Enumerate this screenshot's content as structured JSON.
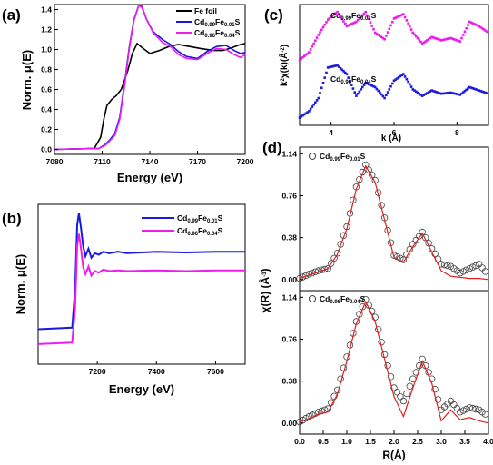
{
  "colors": {
    "black": "#000000",
    "blue": "#1a1adc",
    "magenta": "#ee1aee",
    "red": "#e02020",
    "grey": "#444444"
  },
  "chart_data": [
    {
      "panel": "(a)",
      "type": "line",
      "xlabel": "Energy (eV)",
      "ylabel": "Norm. μ(E)",
      "xlim": [
        7080,
        7200
      ],
      "ylim": [
        -0.05,
        1.45
      ],
      "xticks": [
        "7080",
        "7110",
        "7140",
        "7170",
        "7200"
      ],
      "yticks": [
        "0.0",
        "0.2",
        "0.4",
        "0.6",
        "0.8",
        "1.0",
        "1.2",
        "1.4"
      ],
      "legend": [
        "Fe foil",
        "Cd0.99Fe0.01S",
        "Cd0.96Fe0.04S"
      ],
      "series": [
        {
          "name": "Fe foil",
          "color": "#000000",
          "x": [
            7080,
            7105,
            7109,
            7111,
            7113,
            7116,
            7119,
            7122,
            7126,
            7129,
            7132,
            7135,
            7140,
            7146,
            7152,
            7158,
            7165,
            7172,
            7180,
            7186,
            7192,
            7197,
            7200
          ],
          "y": [
            0,
            0.01,
            0.12,
            0.3,
            0.44,
            0.5,
            0.54,
            0.6,
            0.78,
            0.96,
            1.06,
            1.02,
            0.96,
            0.99,
            1.03,
            1.05,
            1.03,
            1.01,
            0.99,
            0.99,
            1.02,
            1.05,
            1.06
          ]
        },
        {
          "name": "Cd0.99Fe0.01S",
          "color": "#1a1adc",
          "x": [
            7080,
            7108,
            7112,
            7115,
            7118,
            7121,
            7124,
            7127,
            7130,
            7133,
            7135,
            7138,
            7142,
            7148,
            7153,
            7158,
            7163,
            7170,
            7176,
            7182,
            7188,
            7193,
            7197,
            7200
          ],
          "y": [
            0,
            0.01,
            0.05,
            0.1,
            0.16,
            0.32,
            0.65,
            1.02,
            1.3,
            1.44,
            1.43,
            1.3,
            1.18,
            1.1,
            1.05,
            0.98,
            0.93,
            0.91,
            0.98,
            1.03,
            1.04,
            0.99,
            0.96,
            0.97
          ]
        },
        {
          "name": "Cd0.96Fe0.04S",
          "color": "#ee1aee",
          "x": [
            7080,
            7108,
            7112,
            7115,
            7118,
            7121,
            7124,
            7127,
            7130,
            7133,
            7135,
            7138,
            7142,
            7148,
            7153,
            7158,
            7163,
            7170,
            7176,
            7182,
            7188,
            7193,
            7197,
            7200
          ],
          "y": [
            0,
            0.01,
            0.04,
            0.09,
            0.14,
            0.3,
            0.62,
            1.0,
            1.29,
            1.44,
            1.42,
            1.3,
            1.17,
            1.07,
            1.03,
            0.95,
            0.91,
            0.9,
            0.96,
            1.01,
            1.0,
            0.95,
            0.92,
            0.95
          ]
        }
      ]
    },
    {
      "panel": "(b)",
      "type": "line",
      "xlabel": "Energy (eV)",
      "ylabel": "Norm. μ(E)",
      "xlim": [
        7000,
        7700
      ],
      "ylim": [
        0,
        1
      ],
      "xticks": [
        "7200",
        "7400",
        "7600"
      ],
      "legend": [
        "Cd0.99Fe0.01S",
        "Cd0.96Fe0.04S"
      ],
      "series": [
        {
          "name": "Cd0.99Fe0.01S",
          "color": "#1a1adc",
          "x": [
            7000,
            7115,
            7125,
            7132,
            7138,
            7145,
            7152,
            7160,
            7170,
            7180,
            7192,
            7205,
            7220,
            7240,
            7270,
            7300,
            7400,
            7500,
            7600,
            7700
          ],
          "y": [
            0.18,
            0.19,
            0.45,
            0.88,
            0.96,
            0.86,
            0.74,
            0.67,
            0.72,
            0.66,
            0.69,
            0.68,
            0.7,
            0.69,
            0.7,
            0.69,
            0.7,
            0.695,
            0.7,
            0.7
          ]
        },
        {
          "name": "Cd0.96Fe0.04S",
          "color": "#ee1aee",
          "x": [
            7000,
            7115,
            7125,
            7132,
            7138,
            7145,
            7152,
            7160,
            7170,
            7180,
            7192,
            7205,
            7220,
            7240,
            7270,
            7300,
            7400,
            7500,
            7600,
            7700
          ],
          "y": [
            0.08,
            0.09,
            0.32,
            0.74,
            0.82,
            0.72,
            0.6,
            0.55,
            0.6,
            0.54,
            0.57,
            0.56,
            0.58,
            0.57,
            0.575,
            0.57,
            0.575,
            0.57,
            0.575,
            0.575
          ]
        }
      ]
    },
    {
      "panel": "(c)",
      "type": "scatter",
      "xlabel": "k (Å)",
      "ylabel": "k2χ(k)(Å-2)",
      "xlim": [
        3,
        9
      ],
      "ylim": [
        0,
        1
      ],
      "xticks": [
        "4",
        "6",
        "8"
      ],
      "series": [
        {
          "name": "Cd0.99Fe0.01S",
          "color": "#ee1aee",
          "x": [
            3,
            3.3,
            3.6,
            3.9,
            4.2,
            4.5,
            4.8,
            5.1,
            5.4,
            5.7,
            6,
            6.3,
            6.6,
            6.9,
            7.2,
            7.5,
            7.8,
            8.1,
            8.4,
            8.7,
            9
          ],
          "y": [
            0.55,
            0.62,
            0.78,
            0.92,
            0.99,
            0.86,
            0.9,
            0.99,
            0.8,
            0.74,
            0.93,
            0.97,
            0.8,
            0.7,
            0.76,
            0.73,
            0.75,
            0.72,
            0.9,
            0.86,
            0.8
          ]
        },
        {
          "name": "Cd0.96Fe0.04S",
          "color": "#1a1adc",
          "x": [
            3,
            3.3,
            3.6,
            3.9,
            4.2,
            4.5,
            4.8,
            5.1,
            5.4,
            5.7,
            6,
            6.3,
            6.6,
            6.9,
            7.2,
            7.5,
            7.8,
            8.1,
            8.4,
            8.7,
            9
          ],
          "y": [
            0.02,
            0.08,
            0.2,
            0.48,
            0.5,
            0.42,
            0.22,
            0.34,
            0.3,
            0.2,
            0.36,
            0.42,
            0.28,
            0.22,
            0.27,
            0.24,
            0.25,
            0.23,
            0.3,
            0.27,
            0.24
          ]
        }
      ]
    },
    {
      "panel": "(d)",
      "type": "line",
      "xlabel": "R(Å)",
      "ylabel": "χ(R) (Å-3)",
      "xlim": [
        0,
        4
      ],
      "ylim": [
        -0.1,
        1.2
      ],
      "xticks": [
        "0.0",
        "0.5",
        "1.0",
        "1.5",
        "2.0",
        "2.5",
        "3.0",
        "3.5",
        "4.0"
      ],
      "yticks": [
        "0.00",
        "0.38",
        "0.76",
        "1.14"
      ],
      "subplots": [
        {
          "legend": "Cd0.99Fe0.01S",
          "x": [
            0,
            0.2,
            0.4,
            0.6,
            0.8,
            1.0,
            1.2,
            1.4,
            1.6,
            1.8,
            2.0,
            2.2,
            2.4,
            2.6,
            2.8,
            3.0,
            3.2,
            3.4,
            3.6,
            3.8,
            4.0
          ],
          "data": [
            0.01,
            0.05,
            0.08,
            0.1,
            0.24,
            0.48,
            0.84,
            1.04,
            0.9,
            0.56,
            0.22,
            0.18,
            0.32,
            0.43,
            0.28,
            0.14,
            0.12,
            0.06,
            0.1,
            0.14,
            0.04
          ],
          "fit": [
            0.01,
            0.04,
            0.07,
            0.1,
            0.23,
            0.46,
            0.82,
            1.03,
            0.88,
            0.54,
            0.2,
            0.16,
            0.3,
            0.42,
            0.25,
            0.08,
            0.03,
            0.02,
            0.01,
            0.01,
            0.0
          ]
        },
        {
          "legend": "Cd0.96Fe0.04S",
          "x": [
            0,
            0.2,
            0.4,
            0.6,
            0.8,
            1.0,
            1.2,
            1.4,
            1.6,
            1.8,
            2.0,
            2.2,
            2.4,
            2.6,
            2.8,
            3.0,
            3.2,
            3.4,
            3.6,
            3.8,
            4.0
          ],
          "data": [
            0.01,
            0.06,
            0.1,
            0.13,
            0.3,
            0.6,
            0.92,
            1.12,
            0.96,
            0.62,
            0.32,
            0.2,
            0.4,
            0.58,
            0.4,
            0.12,
            0.2,
            0.1,
            0.14,
            0.12,
            0.06
          ],
          "fit": [
            0.01,
            0.04,
            0.08,
            0.1,
            0.26,
            0.56,
            0.9,
            1.1,
            0.92,
            0.58,
            0.24,
            0.06,
            0.32,
            0.56,
            0.36,
            0.02,
            0.12,
            0.03,
            0.05,
            0.02,
            0.0
          ]
        }
      ]
    }
  ]
}
